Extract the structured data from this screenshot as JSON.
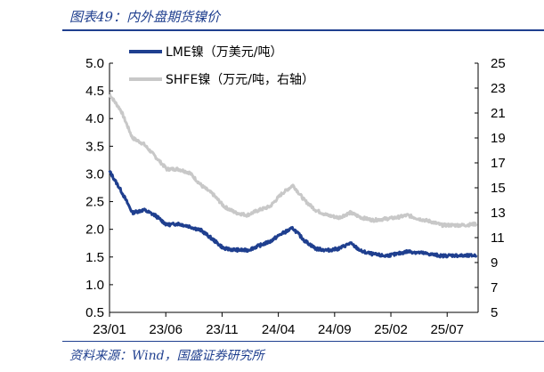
{
  "figure": {
    "title": "图表49：内外盘期货镍价",
    "source": "资料来源：Wind，国盛证券研究所"
  },
  "chart_data": {
    "type": "line",
    "x_tick_labels": [
      "23/01",
      "23/06",
      "23/11",
      "24/04",
      "24/09",
      "25/02",
      "25/07"
    ],
    "y_left": {
      "range": [
        0.5,
        5.0
      ],
      "ticks": [
        "5.0",
        "4.5",
        "4.0",
        "3.5",
        "3.0",
        "2.5",
        "2.0",
        "1.5",
        "1.0",
        "0.5"
      ]
    },
    "y_right": {
      "range": [
        5,
        25
      ],
      "ticks": [
        "25",
        "23",
        "21",
        "19",
        "17",
        "15",
        "13",
        "11",
        "9",
        "7",
        "5"
      ]
    },
    "legend_position": "top-left",
    "grid": false,
    "series": [
      {
        "name": "LME镍（万美元/吨）",
        "axis": "left",
        "color": "#1f3f8f",
        "x": [
          "23/01",
          "23/02",
          "23/03",
          "23/04",
          "23/05",
          "23/06",
          "23/07",
          "23/08",
          "23/09",
          "23/10",
          "23/11",
          "23/12",
          "24/01",
          "24/02",
          "24/03",
          "24/04",
          "24/05",
          "24/06",
          "24/07",
          "24/08",
          "24/09",
          "24/10",
          "24/11",
          "24/12",
          "25/01",
          "25/02",
          "25/03",
          "25/04",
          "25/05",
          "25/06",
          "25/07",
          "25/08",
          "25/09"
        ],
        "values": [
          3.05,
          2.7,
          2.3,
          2.35,
          2.25,
          2.08,
          2.1,
          2.05,
          1.98,
          1.82,
          1.65,
          1.63,
          1.62,
          1.7,
          1.78,
          1.92,
          2.02,
          1.8,
          1.65,
          1.62,
          1.65,
          1.75,
          1.6,
          1.55,
          1.52,
          1.55,
          1.6,
          1.58,
          1.55,
          1.52,
          1.53,
          1.52,
          1.53
        ]
      },
      {
        "name": "SHFE镍（万元/吨，右轴）",
        "axis": "right",
        "color": "#c8c8c8",
        "x": [
          "23/01",
          "23/02",
          "23/03",
          "23/04",
          "23/05",
          "23/06",
          "23/07",
          "23/08",
          "23/09",
          "23/10",
          "23/11",
          "23/12",
          "24/01",
          "24/02",
          "24/03",
          "24/04",
          "24/05",
          "24/06",
          "24/07",
          "24/08",
          "24/09",
          "24/10",
          "24/11",
          "24/12",
          "25/01",
          "25/02",
          "25/03",
          "25/04",
          "25/05",
          "25/06",
          "25/07",
          "25/08",
          "25/09"
        ],
        "values": [
          22.5,
          21.2,
          19.0,
          18.5,
          17.5,
          16.5,
          16.5,
          16.2,
          15.2,
          14.5,
          13.5,
          13.0,
          12.8,
          13.2,
          13.5,
          14.5,
          15.2,
          14.0,
          13.2,
          12.8,
          12.6,
          13.0,
          12.6,
          12.4,
          12.5,
          12.6,
          12.8,
          12.5,
          12.3,
          12.0,
          12.0,
          12.0,
          12.1
        ]
      }
    ]
  }
}
